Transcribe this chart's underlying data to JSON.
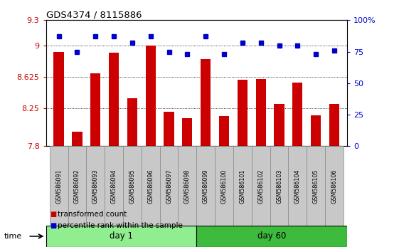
{
  "title": "GDS4374 / 8115886",
  "samples": [
    "GSM586091",
    "GSM586092",
    "GSM586093",
    "GSM586094",
    "GSM586095",
    "GSM586096",
    "GSM586097",
    "GSM586098",
    "GSM586099",
    "GSM586100",
    "GSM586101",
    "GSM586102",
    "GSM586103",
    "GSM586104",
    "GSM586105",
    "GSM586106"
  ],
  "bar_values": [
    8.92,
    7.97,
    8.67,
    8.91,
    8.37,
    9.0,
    8.21,
    8.13,
    8.84,
    8.16,
    8.59,
    8.6,
    8.3,
    8.56,
    8.17,
    8.3
  ],
  "pct_values": [
    87,
    75,
    87,
    87,
    82,
    87,
    75,
    73,
    87,
    73,
    82,
    82,
    80,
    80,
    73,
    76
  ],
  "ylim_left": [
    7.8,
    9.3
  ],
  "ylim_right": [
    0,
    100
  ],
  "yticks_left": [
    7.8,
    8.25,
    8.625,
    9.0,
    9.3
  ],
  "yticks_right": [
    0,
    25,
    50,
    75,
    100
  ],
  "ytick_labels_left": [
    "7.8",
    "8.25",
    "8.625",
    "9",
    "9.3"
  ],
  "ytick_labels_right": [
    "0",
    "25",
    "50",
    "75",
    "100%"
  ],
  "grid_values": [
    9.0,
    8.625,
    8.25
  ],
  "day1_samples": 8,
  "day60_samples": 8,
  "bar_color": "#cc0000",
  "pct_color": "#0000cc",
  "day1_color": "#90ee90",
  "day60_color": "#3dbb3d",
  "samp_box_color": "#c8c8c8",
  "samp_box_edge": "#888888",
  "bg_color": "#ffffff",
  "xlabel_color": "#cc0000",
  "ylabel_right_color": "#0000cc",
  "legend_items": [
    "transformed count",
    "percentile rank within the sample"
  ]
}
